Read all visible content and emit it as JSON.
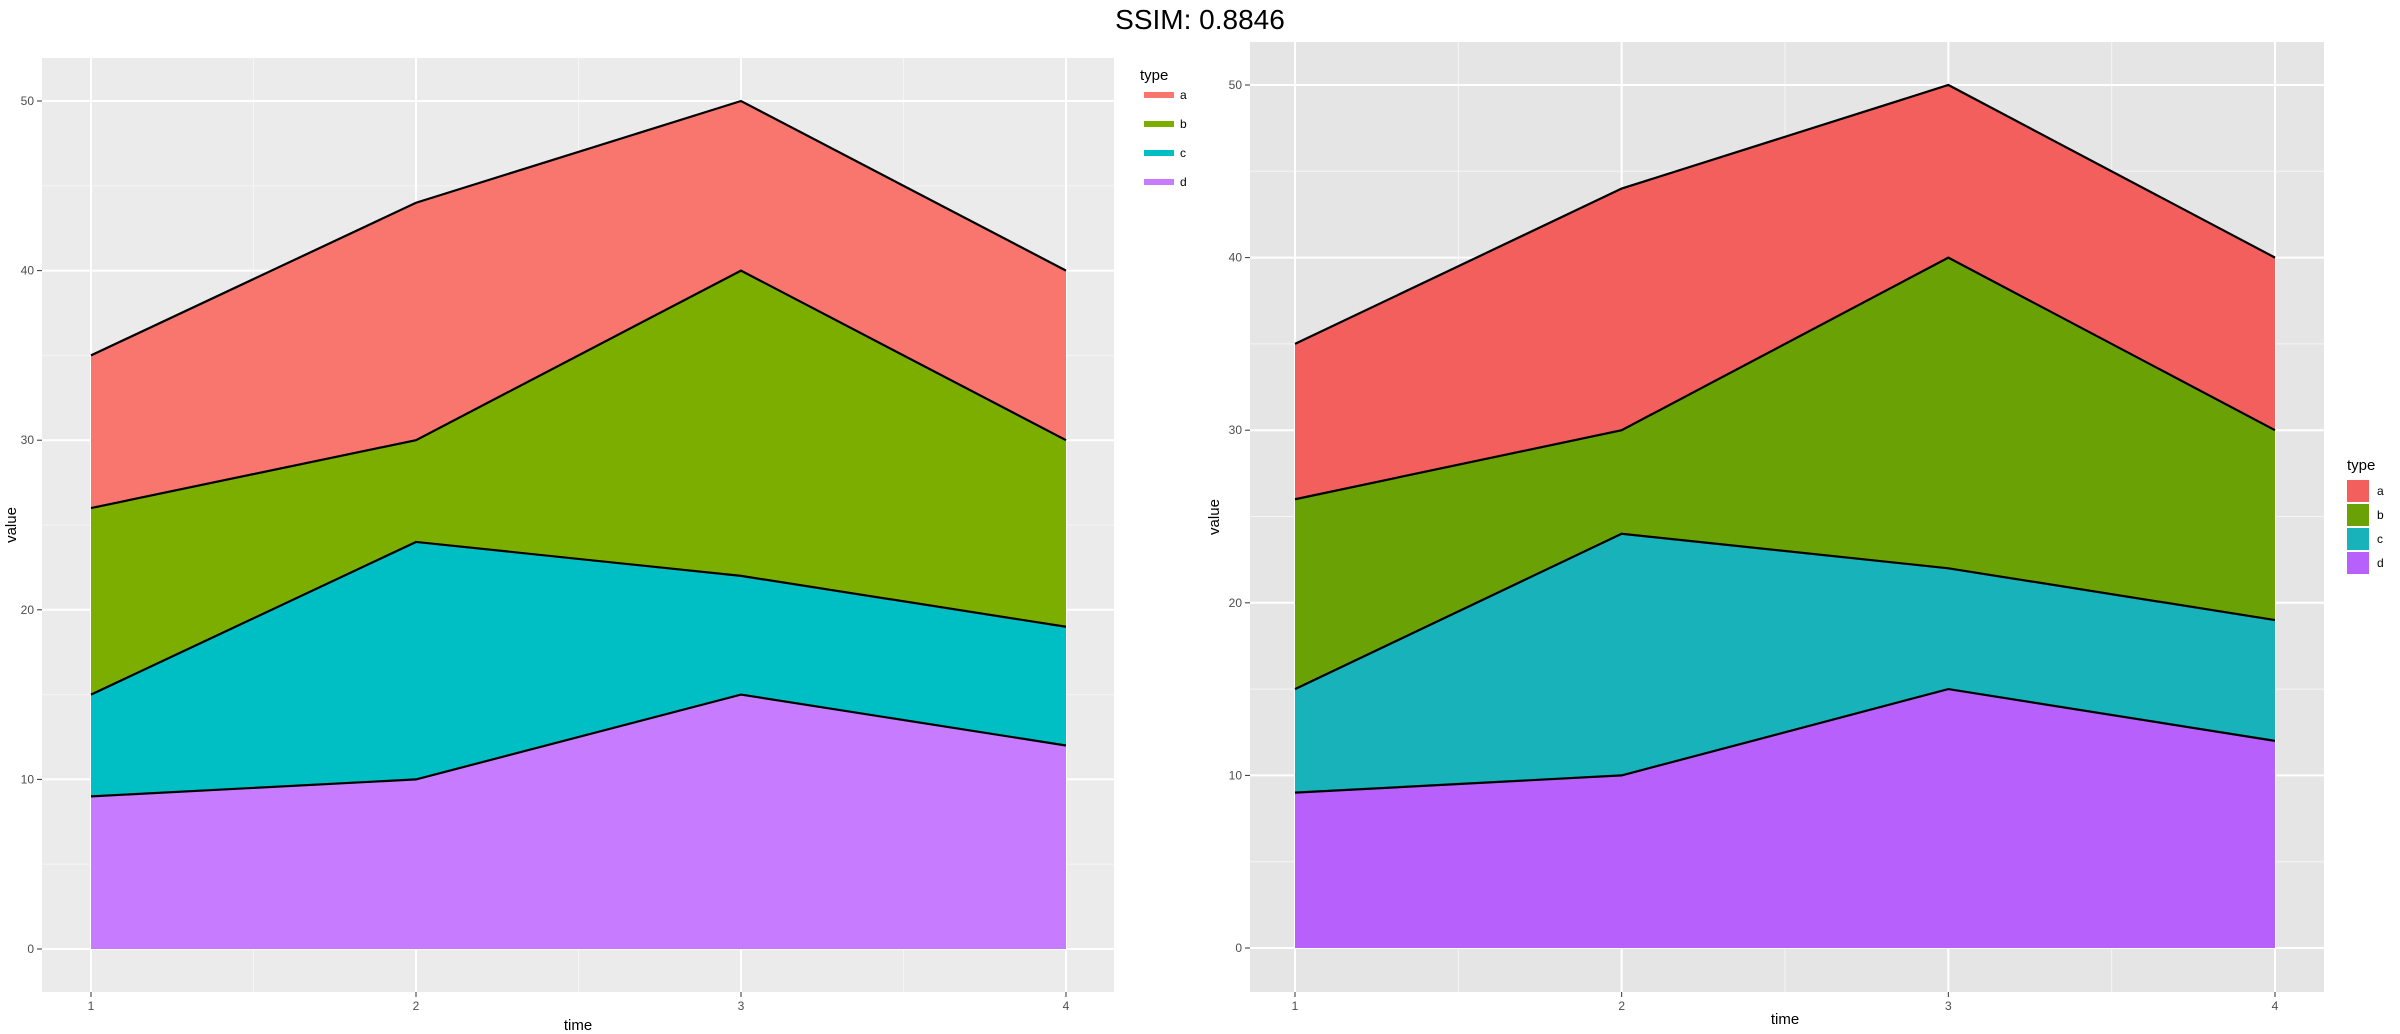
{
  "title": "SSIM: 0.8846",
  "chart_data": [
    {
      "type": "area",
      "stacked": true,
      "x": [
        1,
        2,
        3,
        4
      ],
      "xlabel": "time",
      "ylabel": "value",
      "ylim": [
        0,
        50
      ],
      "yticks": [
        0,
        10,
        20,
        30,
        40,
        50
      ],
      "xticks": [
        1,
        2,
        3,
        4
      ],
      "grid": true,
      "legend_title": "type",
      "legend_position": "top-right",
      "series": [
        {
          "name": "a",
          "values": [
            9,
            14,
            10,
            10
          ],
          "color": "#F8766D"
        },
        {
          "name": "b",
          "values": [
            11,
            6,
            18,
            11
          ],
          "color": "#7CAE00"
        },
        {
          "name": "c",
          "values": [
            6,
            14,
            7,
            7
          ],
          "color": "#00BFC4"
        },
        {
          "name": "d",
          "values": [
            9,
            10,
            15,
            12
          ],
          "color": "#C77CFF"
        }
      ]
    },
    {
      "type": "area",
      "stacked": true,
      "x": [
        1,
        2,
        3,
        4
      ],
      "xlabel": "time",
      "ylabel": "value",
      "ylim": [
        0,
        50
      ],
      "yticks": [
        0,
        10,
        20,
        30,
        40,
        50
      ],
      "xticks": [
        1,
        2,
        3,
        4
      ],
      "grid": true,
      "legend_title": "type",
      "legend_position": "right",
      "series": [
        {
          "name": "a",
          "values": [
            9,
            14,
            10,
            10
          ],
          "color": "#F35F5C"
        },
        {
          "name": "b",
          "values": [
            11,
            6,
            18,
            11
          ],
          "color": "#6AA104"
        },
        {
          "name": "c",
          "values": [
            6,
            14,
            7,
            7
          ],
          "color": "#18B2BA"
        },
        {
          "name": "d",
          "values": [
            9,
            10,
            15,
            12
          ],
          "color": "#B860FB"
        }
      ]
    }
  ]
}
